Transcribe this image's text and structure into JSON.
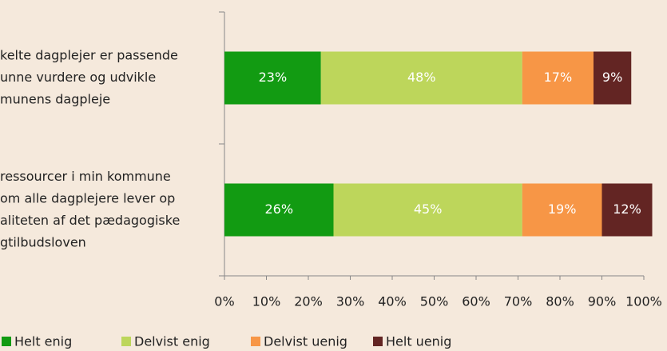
{
  "chart_data": {
    "type": "bar",
    "orientation": "horizontal",
    "stacked": true,
    "categories": [
      [
        "kelte dagplejer er passende",
        "unne vurdere og udvikle",
        "munens dagpleje"
      ],
      [
        "ressourcer i min kommune",
        "om alle dagplejere lever op",
        "aliteten af det pædagogiske",
        "gtilbudsloven"
      ]
    ],
    "series": [
      {
        "name": "Helt enig",
        "color": "#129b12",
        "values": [
          23,
          26
        ],
        "value_labels": [
          "23%",
          "26%"
        ]
      },
      {
        "name": "Delvist enig",
        "color": "#bdd65b",
        "values": [
          48,
          45
        ],
        "value_labels": [
          "48%",
          "45%"
        ]
      },
      {
        "name": "Delvist uenig",
        "color": "#f79646",
        "values": [
          17,
          19
        ],
        "value_labels": [
          "17%",
          "19%"
        ]
      },
      {
        "name": "Helt uenig",
        "color": "#632523",
        "values": [
          9,
          12
        ],
        "value_labels": [
          "9%",
          "12%"
        ]
      }
    ],
    "xlim": [
      0,
      100
    ],
    "xticks": [
      {
        "value": 0,
        "label": "0%"
      },
      {
        "value": 10,
        "label": "10%"
      },
      {
        "value": 20,
        "label": "20%"
      },
      {
        "value": 30,
        "label": "30%"
      },
      {
        "value": 40,
        "label": "40%"
      },
      {
        "value": 50,
        "label": "50%"
      },
      {
        "value": 60,
        "label": "60%"
      },
      {
        "value": 70,
        "label": "70%"
      },
      {
        "value": 80,
        "label": "80%"
      },
      {
        "value": 90,
        "label": "90%"
      },
      {
        "value": 100,
        "label": "100%"
      }
    ],
    "legend": "bottom"
  }
}
